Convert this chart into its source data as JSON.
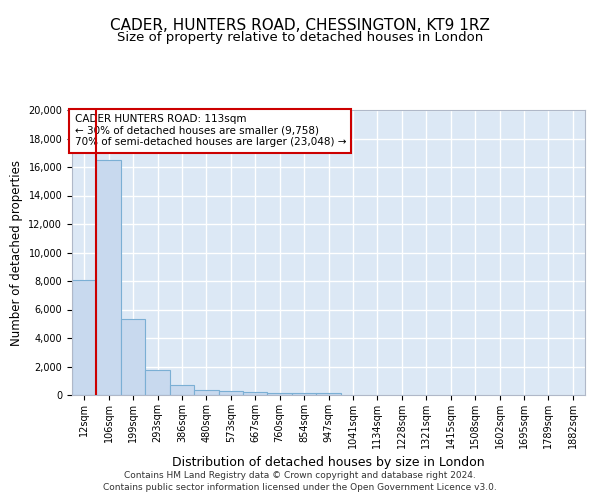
{
  "title1": "CADER, HUNTERS ROAD, CHESSINGTON, KT9 1RZ",
  "title2": "Size of property relative to detached houses in London",
  "xlabel": "Distribution of detached houses by size in London",
  "ylabel": "Number of detached properties",
  "bin_labels": [
    "12sqm",
    "106sqm",
    "199sqm",
    "293sqm",
    "386sqm",
    "480sqm",
    "573sqm",
    "667sqm",
    "760sqm",
    "854sqm",
    "947sqm",
    "1041sqm",
    "1134sqm",
    "1228sqm",
    "1321sqm",
    "1415sqm",
    "1508sqm",
    "1602sqm",
    "1695sqm",
    "1789sqm",
    "1882sqm"
  ],
  "bar_heights": [
    8100,
    16500,
    5300,
    1750,
    700,
    330,
    250,
    200,
    160,
    150,
    120,
    0,
    0,
    0,
    0,
    0,
    0,
    0,
    0,
    0,
    0
  ],
  "bar_color": "#c8d9ee",
  "bar_edge_color": "#7bafd4",
  "vline_x": 0.5,
  "vline_color": "#cc0000",
  "annotation_text": "CADER HUNTERS ROAD: 113sqm\n← 30% of detached houses are smaller (9,758)\n70% of semi-detached houses are larger (23,048) →",
  "annotation_box_color": "#ffffff",
  "annotation_box_edge": "#cc0000",
  "ylim": [
    0,
    20000
  ],
  "yticks": [
    0,
    2000,
    4000,
    6000,
    8000,
    10000,
    12000,
    14000,
    16000,
    18000,
    20000
  ],
  "footer1": "Contains HM Land Registry data © Crown copyright and database right 2024.",
  "footer2": "Contains public sector information licensed under the Open Government Licence v3.0.",
  "fig_bg_color": "#ffffff",
  "plot_bg_color": "#dce8f5",
  "grid_color": "#ffffff",
  "title_fontsize": 11,
  "subtitle_fontsize": 9.5,
  "tick_fontsize": 7,
  "ylabel_fontsize": 8.5,
  "xlabel_fontsize": 9
}
